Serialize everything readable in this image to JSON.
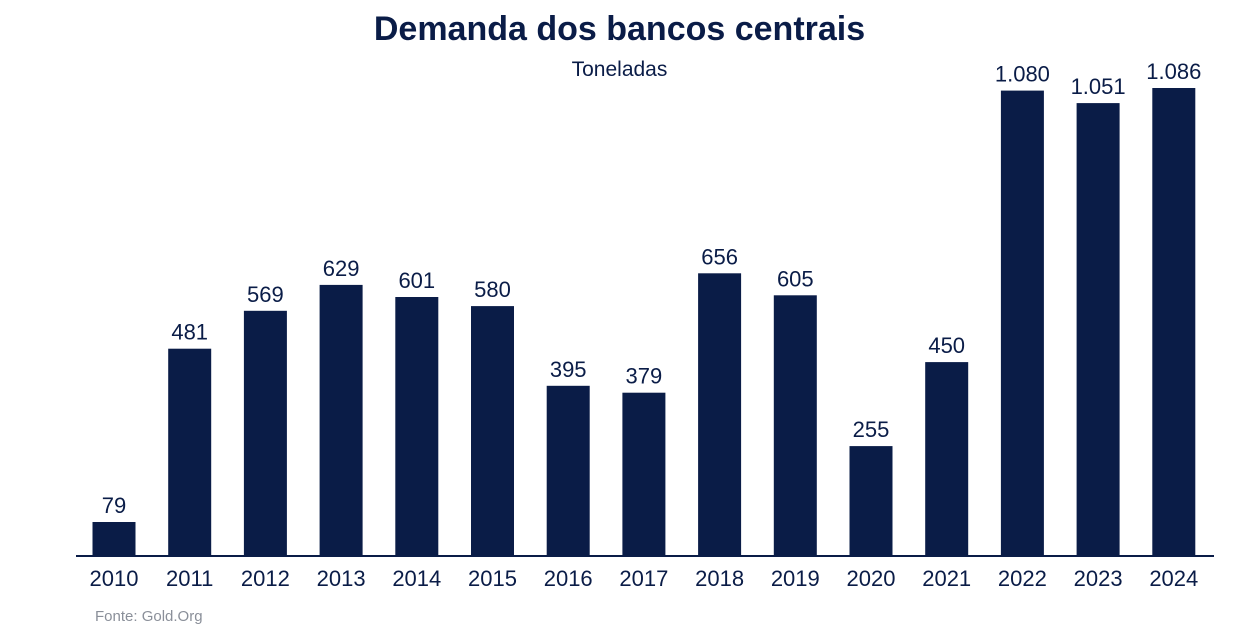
{
  "header": {
    "title": "Demanda dos bancos centrais",
    "subtitle": "Toneladas"
  },
  "footer": {
    "source": "Fonte: Gold.Org"
  },
  "colors": {
    "bar": "#0a1c47",
    "text": "#0a1c47",
    "axis": "#0a1c47",
    "source": "#8a8f99"
  },
  "chart_data": {
    "type": "bar",
    "title": "Demanda dos bancos centrais",
    "subtitle": "Toneladas",
    "categories": [
      "2010",
      "2011",
      "2012",
      "2013",
      "2014",
      "2015",
      "2016",
      "2017",
      "2018",
      "2019",
      "2020",
      "2021",
      "2022",
      "2023",
      "2024"
    ],
    "values": [
      79,
      481,
      569,
      629,
      601,
      580,
      395,
      379,
      656,
      605,
      255,
      450,
      1080,
      1051,
      1086
    ],
    "value_labels": [
      "79",
      "481",
      "569",
      "629",
      "601",
      "580",
      "395",
      "379",
      "656",
      "605",
      "255",
      "450",
      "1.080",
      "1.051",
      "1.086"
    ],
    "ylim": [
      0,
      1086
    ],
    "grid": false,
    "legend": "none"
  }
}
